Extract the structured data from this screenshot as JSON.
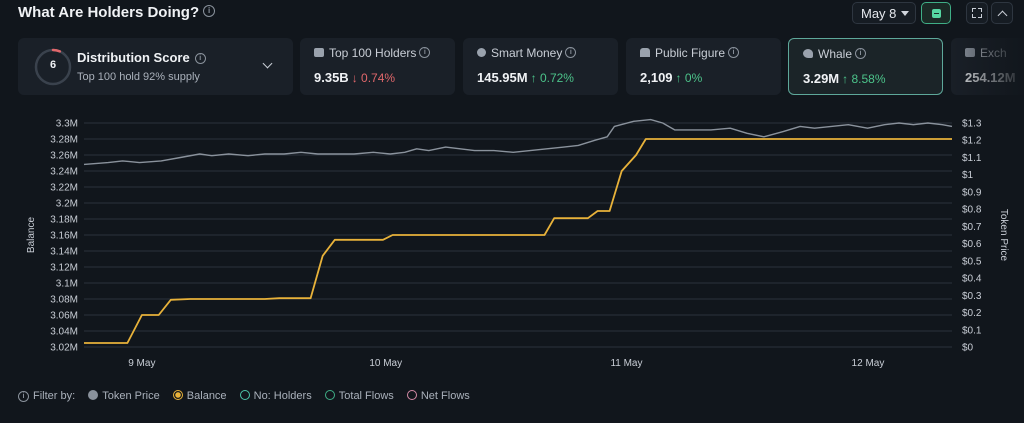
{
  "header": {
    "title": "What Are Holders Doing?",
    "date_value": "May 8"
  },
  "distribution": {
    "title": "Distribution Score",
    "score": "6",
    "subtitle": "Top 100 hold 92% supply"
  },
  "cards": [
    {
      "label": "Top 100 Holders",
      "value": "9.35B",
      "change": "0.74%",
      "direction": "down"
    },
    {
      "label": "Smart Money",
      "value": "145.95M",
      "change": "0.72%",
      "direction": "up"
    },
    {
      "label": "Public Figure",
      "value": "2,109",
      "change": "0%",
      "direction": "up"
    },
    {
      "label": "Whale",
      "value": "3.29M",
      "change": "8.58%",
      "direction": "up",
      "active": true
    },
    {
      "label": "Exch",
      "value": "254.12M",
      "change": "",
      "direction": "up"
    }
  ],
  "legend": {
    "filter_label": "Filter by:",
    "items": [
      {
        "label": "Token Price",
        "color": "#8a929c",
        "style": "filled"
      },
      {
        "label": "Balance",
        "color": "#e8b23a",
        "style": "selected"
      },
      {
        "label": "No: Holders",
        "color": "#4cc3a8",
        "style": "outline"
      },
      {
        "label": "Total Flows",
        "color": "#3fae86",
        "style": "outline"
      },
      {
        "label": "Net Flows",
        "color": "#d48aa6",
        "style": "outline"
      }
    ]
  },
  "chart_data": {
    "type": "line",
    "ylabel": "Balance",
    "y2label": "Token Price",
    "x_ticks": [
      "9 May",
      "10 May",
      "11 May",
      "12 May"
    ],
    "y_ticks": [
      "3.02M",
      "3.04M",
      "3.06M",
      "3.08M",
      "3.1M",
      "3.12M",
      "3.14M",
      "3.16M",
      "3.18M",
      "3.2M",
      "3.22M",
      "3.24M",
      "3.26M",
      "3.28M",
      "3.3M"
    ],
    "y2_ticks": [
      "$0",
      "$0.1",
      "$0.2",
      "$0.3",
      "$0.4",
      "$0.5",
      "$0.6",
      "$0.7",
      "$0.8",
      "$0.9",
      "$1",
      "$1.1",
      "$1.2",
      "$1.3"
    ],
    "ylim": [
      3.02,
      3.3
    ],
    "y2lim": [
      0,
      1.3
    ],
    "grid": true,
    "colors": {
      "balance": "#e8b23a",
      "price": "#8a929c",
      "grid": "#2a323c"
    },
    "series": [
      {
        "name": "Balance",
        "axis": "left",
        "unit": "M",
        "points": [
          [
            8.8,
            3.025
          ],
          [
            8.98,
            3.025
          ],
          [
            9.04,
            3.06
          ],
          [
            9.11,
            3.06
          ],
          [
            9.16,
            3.079
          ],
          [
            9.24,
            3.08
          ],
          [
            9.55,
            3.08
          ],
          [
            9.61,
            3.081
          ],
          [
            9.74,
            3.081
          ],
          [
            9.79,
            3.134
          ],
          [
            9.84,
            3.154
          ],
          [
            10.0,
            3.154
          ],
          [
            10.04,
            3.154
          ],
          [
            10.08,
            3.16
          ],
          [
            10.28,
            3.16
          ],
          [
            10.55,
            3.16
          ],
          [
            10.71,
            3.16
          ],
          [
            10.75,
            3.181
          ],
          [
            10.89,
            3.181
          ],
          [
            10.93,
            3.19
          ],
          [
            10.98,
            3.19
          ],
          [
            11.03,
            3.24
          ],
          [
            11.09,
            3.26
          ],
          [
            11.13,
            3.28
          ],
          [
            11.5,
            3.28
          ],
          [
            12.0,
            3.28
          ],
          [
            12.4,
            3.28
          ]
        ]
      },
      {
        "name": "Token Price",
        "axis": "right",
        "unit": "$",
        "points": [
          [
            8.8,
            1.06
          ],
          [
            8.9,
            1.07
          ],
          [
            8.96,
            1.08
          ],
          [
            9.03,
            1.07
          ],
          [
            9.12,
            1.08
          ],
          [
            9.2,
            1.1
          ],
          [
            9.28,
            1.12
          ],
          [
            9.33,
            1.11
          ],
          [
            9.4,
            1.12
          ],
          [
            9.48,
            1.11
          ],
          [
            9.55,
            1.12
          ],
          [
            9.63,
            1.12
          ],
          [
            9.7,
            1.13
          ],
          [
            9.77,
            1.12
          ],
          [
            9.85,
            1.12
          ],
          [
            9.92,
            1.12
          ],
          [
            10.0,
            1.13
          ],
          [
            10.07,
            1.12
          ],
          [
            10.13,
            1.13
          ],
          [
            10.18,
            1.15
          ],
          [
            10.23,
            1.14
          ],
          [
            10.3,
            1.16
          ],
          [
            10.36,
            1.15
          ],
          [
            10.42,
            1.14
          ],
          [
            10.5,
            1.14
          ],
          [
            10.58,
            1.13
          ],
          [
            10.65,
            1.14
          ],
          [
            10.72,
            1.15
          ],
          [
            10.79,
            1.16
          ],
          [
            10.85,
            1.17
          ],
          [
            10.92,
            1.2
          ],
          [
            10.97,
            1.22
          ],
          [
            11.0,
            1.28
          ],
          [
            11.08,
            1.31
          ],
          [
            11.15,
            1.32
          ],
          [
            11.2,
            1.3
          ],
          [
            11.25,
            1.26
          ],
          [
            11.32,
            1.26
          ],
          [
            11.4,
            1.26
          ],
          [
            11.48,
            1.27
          ],
          [
            11.55,
            1.24
          ],
          [
            11.62,
            1.22
          ],
          [
            11.7,
            1.25
          ],
          [
            11.77,
            1.28
          ],
          [
            11.83,
            1.27
          ],
          [
            11.9,
            1.28
          ],
          [
            11.97,
            1.29
          ],
          [
            12.05,
            1.27
          ],
          [
            12.12,
            1.29
          ],
          [
            12.18,
            1.3
          ],
          [
            12.24,
            1.29
          ],
          [
            12.3,
            1.3
          ],
          [
            12.36,
            1.29
          ],
          [
            12.4,
            1.28
          ]
        ]
      }
    ]
  }
}
